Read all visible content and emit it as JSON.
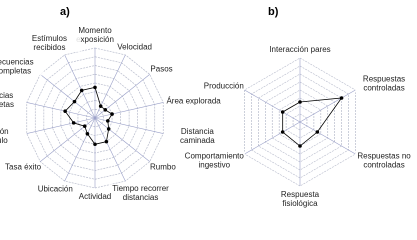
{
  "chart_data": [
    {
      "type": "radar",
      "title": "a)",
      "categories": [
        "Momento exposición",
        "Velocidad",
        "Pasos",
        "Área explorada",
        "Distancia caminada",
        "Rumbo",
        "Tiempo recorrer distancias",
        "Actividad",
        "Ubicación",
        "Tasa éxito",
        "Duración estímulo",
        "Secuencias incompletas",
        "Secuencias completas",
        "Estímulos recibidos"
      ],
      "values": [
        3.5,
        1.5,
        1.5,
        2,
        1.5,
        2,
        3,
        3,
        2,
        1.5,
        2.5,
        3.5,
        3,
        3.5
      ],
      "color": "#000000",
      "rlim": [
        0,
        8
      ],
      "rticks": [
        1,
        2,
        3,
        4,
        5,
        6,
        7,
        8
      ],
      "grid": true
    },
    {
      "type": "radar",
      "title": "b)",
      "categories": [
        "Interacción pares",
        "Respuestas controladas",
        "Respuestas no controladas",
        "Respuesta fisiológica",
        "Comportamiento ingestivo",
        "Producción"
      ],
      "values": [
        2.5,
        6,
        2.5,
        3,
        2.5,
        2.5
      ],
      "color": "#000000",
      "rlim": [
        0,
        8
      ],
      "rticks": [
        1,
        2,
        3,
        4,
        5,
        6,
        7,
        8
      ],
      "grid": true
    }
  ]
}
